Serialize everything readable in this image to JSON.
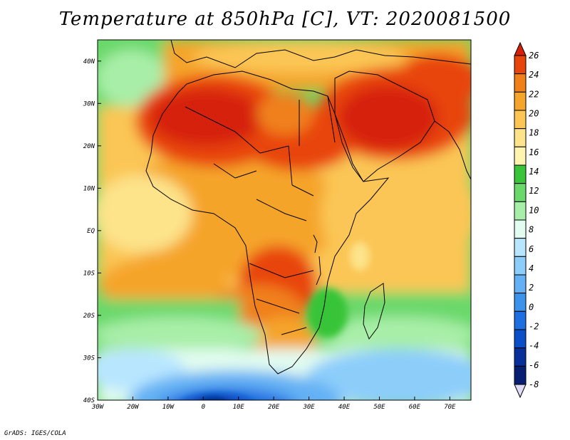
{
  "title": "Temperature at 850hPa [C], VT: 2020081500",
  "credit": "GrADS: IGES/COLA",
  "map": {
    "lon_ticks": [
      "30W",
      "20W",
      "10W",
      "0",
      "10E",
      "20E",
      "30E",
      "40E",
      "50E",
      "60E",
      "70E"
    ],
    "lat_ticks": [
      "40N",
      "30N",
      "20N",
      "10N",
      "EQ",
      "10S",
      "20S",
      "30S",
      "40S"
    ],
    "extent": {
      "lon": [
        -30,
        76
      ],
      "lat": [
        -40,
        45
      ]
    }
  },
  "colorbar": {
    "levels": [
      "26",
      "24",
      "22",
      "20",
      "18",
      "16",
      "14",
      "12",
      "10",
      "8",
      "6",
      "4",
      "2",
      "0",
      "-2",
      "-4",
      "-6",
      "-8"
    ],
    "colors": [
      "#d6200a",
      "#e8450d",
      "#f0801a",
      "#f5a42c",
      "#fbc654",
      "#fde38a",
      "#fff4b0",
      "#39c439",
      "#6ad86a",
      "#a8eea8",
      "#e2fcf0",
      "#b8e6ff",
      "#8ccdfa",
      "#63b1f4",
      "#3c93ec",
      "#1e6fe0",
      "#0a4fc8",
      "#082f9a",
      "#061f72",
      "#e0dcf8"
    ]
  },
  "legend_colors": {
    "hot": "#d6200a",
    "warm": "#f0801a",
    "mild": "#fde38a",
    "green": "#39c439",
    "light": "#e2fcf0",
    "cold": "#1e6fe0",
    "coldest": "#061f72"
  }
}
